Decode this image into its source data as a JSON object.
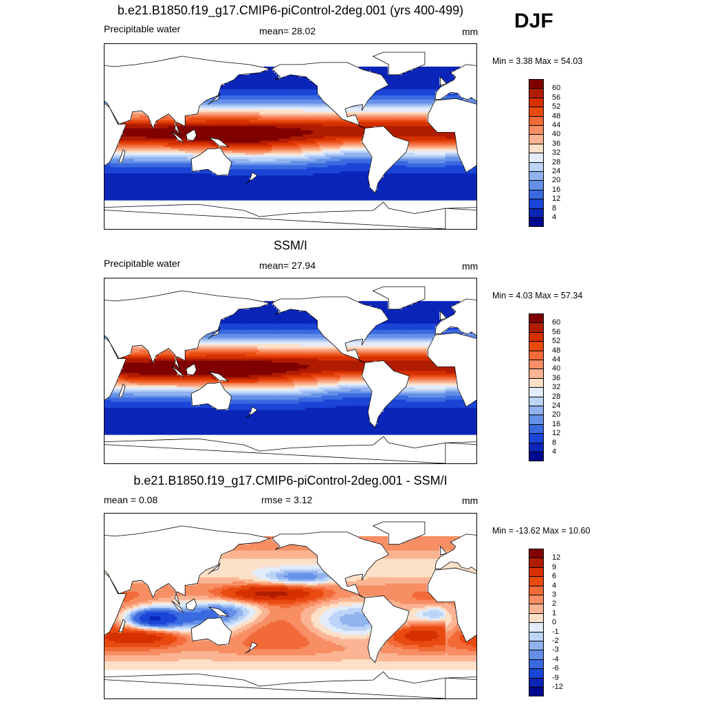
{
  "season": "DJF",
  "panels": [
    {
      "title": "b.e21.B1850.f19_g17.CMIP6-piControl-2deg.001 (yrs 400-499)",
      "left_label": "Precipitable water",
      "center_label": "mean=  28.02",
      "units": "mm",
      "minmax": "Min =   3.38 Max =  54.03",
      "field": "model",
      "colorbar": {
        "labels": [
          "60",
          "56",
          "52",
          "48",
          "44",
          "40",
          "36",
          "32",
          "28",
          "24",
          "20",
          "16",
          "12",
          "8",
          "4"
        ],
        "colors": [
          "#800000",
          "#b01c00",
          "#d63000",
          "#e84a10",
          "#f26a38",
          "#f78e64",
          "#fbb493",
          "#fde0c8",
          "#e2ecfb",
          "#bcd4f7",
          "#90b3ef",
          "#6590e8",
          "#3a6ae0",
          "#1a45d6",
          "#0a25b8",
          "#000890"
        ]
      }
    },
    {
      "title": "SSM/I",
      "left_label": "Precipitable water",
      "center_label": "mean=  27.94",
      "units": "mm",
      "minmax": "Min =   4.03 Max =  57.34",
      "field": "obs",
      "colorbar": {
        "labels": [
          "60",
          "56",
          "52",
          "48",
          "44",
          "40",
          "36",
          "32",
          "28",
          "24",
          "20",
          "16",
          "12",
          "8",
          "4"
        ],
        "colors": [
          "#800000",
          "#b01c00",
          "#d63000",
          "#e84a10",
          "#f26a38",
          "#f78e64",
          "#fbb493",
          "#fde0c8",
          "#e2ecfb",
          "#bcd4f7",
          "#90b3ef",
          "#6590e8",
          "#3a6ae0",
          "#1a45d6",
          "#0a25b8",
          "#000890"
        ]
      }
    },
    {
      "title": "b.e21.B1850.f19_g17.CMIP6-piControl-2deg.001 - SSM/I",
      "left_label": "mean =   0.08",
      "center_label": "rmse =   3.12",
      "units": "mm",
      "minmax": "Min = -13.62 Max =  10.60",
      "field": "diff",
      "colorbar": {
        "labels": [
          "12",
          "9",
          "6",
          "4",
          "3",
          "2",
          "1",
          "0",
          "-1",
          "-2",
          "-3",
          "-4",
          "-6",
          "-9",
          "-12"
        ],
        "colors": [
          "#800000",
          "#b01c00",
          "#d63000",
          "#e84a10",
          "#f26a38",
          "#f78e64",
          "#fbb493",
          "#fde0c8",
          "#e2ecfb",
          "#bcd4f7",
          "#90b3ef",
          "#6590e8",
          "#3a6ae0",
          "#1a45d6",
          "#0a25b8",
          "#000890"
        ]
      }
    }
  ]
}
